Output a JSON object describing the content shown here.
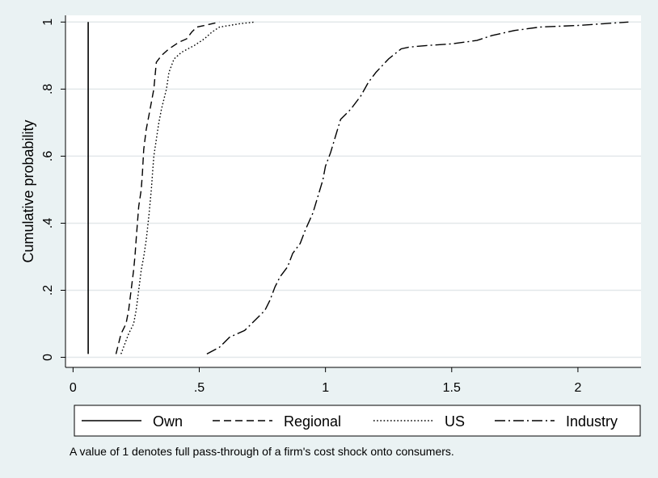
{
  "chart_data": {
    "type": "line",
    "title": "",
    "xlabel": "",
    "ylabel": "Cumulative probability",
    "xlim": [
      -0.03,
      2.25
    ],
    "ylim": [
      -0.03,
      1.02
    ],
    "x_ticks": [
      {
        "value": 0,
        "label": "0"
      },
      {
        "value": 0.5,
        "label": ".5"
      },
      {
        "value": 1,
        "label": "1"
      },
      {
        "value": 1.5,
        "label": "1.5"
      },
      {
        "value": 2,
        "label": "2"
      }
    ],
    "y_ticks": [
      {
        "value": 0,
        "label": "0"
      },
      {
        "value": 0.2,
        "label": ".2"
      },
      {
        "value": 0.4,
        "label": ".4"
      },
      {
        "value": 0.6,
        "label": ".6"
      },
      {
        "value": 0.8,
        "label": ".8"
      },
      {
        "value": 1,
        "label": "1"
      }
    ],
    "grid": "horizontal",
    "legend_position": "bottom",
    "series": [
      {
        "name": "Own",
        "dash": "solid",
        "x": [
          0.06,
          0.06
        ],
        "y": [
          0.01,
          1.0
        ]
      },
      {
        "name": "Regional",
        "dash": "dashed",
        "x": [
          0.17,
          0.18,
          0.19,
          0.21,
          0.22,
          0.23,
          0.24,
          0.245,
          0.25,
          0.255,
          0.26,
          0.27,
          0.275,
          0.28,
          0.29,
          0.3,
          0.31,
          0.32,
          0.33,
          0.35,
          0.38,
          0.42,
          0.45,
          0.47,
          0.49,
          0.52,
          0.55,
          0.58
        ],
        "y": [
          0.01,
          0.04,
          0.07,
          0.1,
          0.14,
          0.2,
          0.26,
          0.3,
          0.35,
          0.4,
          0.45,
          0.5,
          0.55,
          0.62,
          0.68,
          0.72,
          0.76,
          0.8,
          0.88,
          0.9,
          0.92,
          0.94,
          0.95,
          0.97,
          0.985,
          0.99,
          0.995,
          1.0
        ]
      },
      {
        "name": "US",
        "dash": "dotted",
        "x": [
          0.19,
          0.2,
          0.22,
          0.24,
          0.25,
          0.26,
          0.27,
          0.28,
          0.29,
          0.3,
          0.31,
          0.315,
          0.32,
          0.33,
          0.34,
          0.35,
          0.37,
          0.38,
          0.4,
          0.43,
          0.48,
          0.52,
          0.55,
          0.58,
          0.62,
          0.66,
          0.72
        ],
        "y": [
          0.01,
          0.03,
          0.07,
          0.1,
          0.14,
          0.2,
          0.26,
          0.3,
          0.35,
          0.42,
          0.5,
          0.55,
          0.6,
          0.65,
          0.7,
          0.74,
          0.8,
          0.85,
          0.89,
          0.91,
          0.93,
          0.95,
          0.97,
          0.985,
          0.99,
          0.995,
          1.0
        ]
      },
      {
        "name": "Industry",
        "dash": "dashdot",
        "x": [
          0.53,
          0.58,
          0.62,
          0.68,
          0.72,
          0.76,
          0.78,
          0.8,
          0.82,
          0.85,
          0.87,
          0.9,
          0.92,
          0.95,
          0.97,
          0.99,
          1.0,
          1.02,
          1.04,
          1.06,
          1.1,
          1.14,
          1.17,
          1.2,
          1.25,
          1.3,
          1.33,
          1.4,
          1.5,
          1.6,
          1.66,
          1.75,
          1.85,
          2.0,
          2.1,
          2.2
        ],
        "y": [
          0.01,
          0.03,
          0.06,
          0.08,
          0.11,
          0.14,
          0.17,
          0.21,
          0.24,
          0.27,
          0.31,
          0.34,
          0.38,
          0.43,
          0.48,
          0.53,
          0.57,
          0.61,
          0.66,
          0.71,
          0.74,
          0.78,
          0.82,
          0.85,
          0.89,
          0.92,
          0.925,
          0.93,
          0.935,
          0.945,
          0.96,
          0.975,
          0.985,
          0.99,
          0.995,
          1.0
        ]
      }
    ]
  },
  "note": "A value of 1 denotes full pass-through of a firm's cost shock onto consumers."
}
